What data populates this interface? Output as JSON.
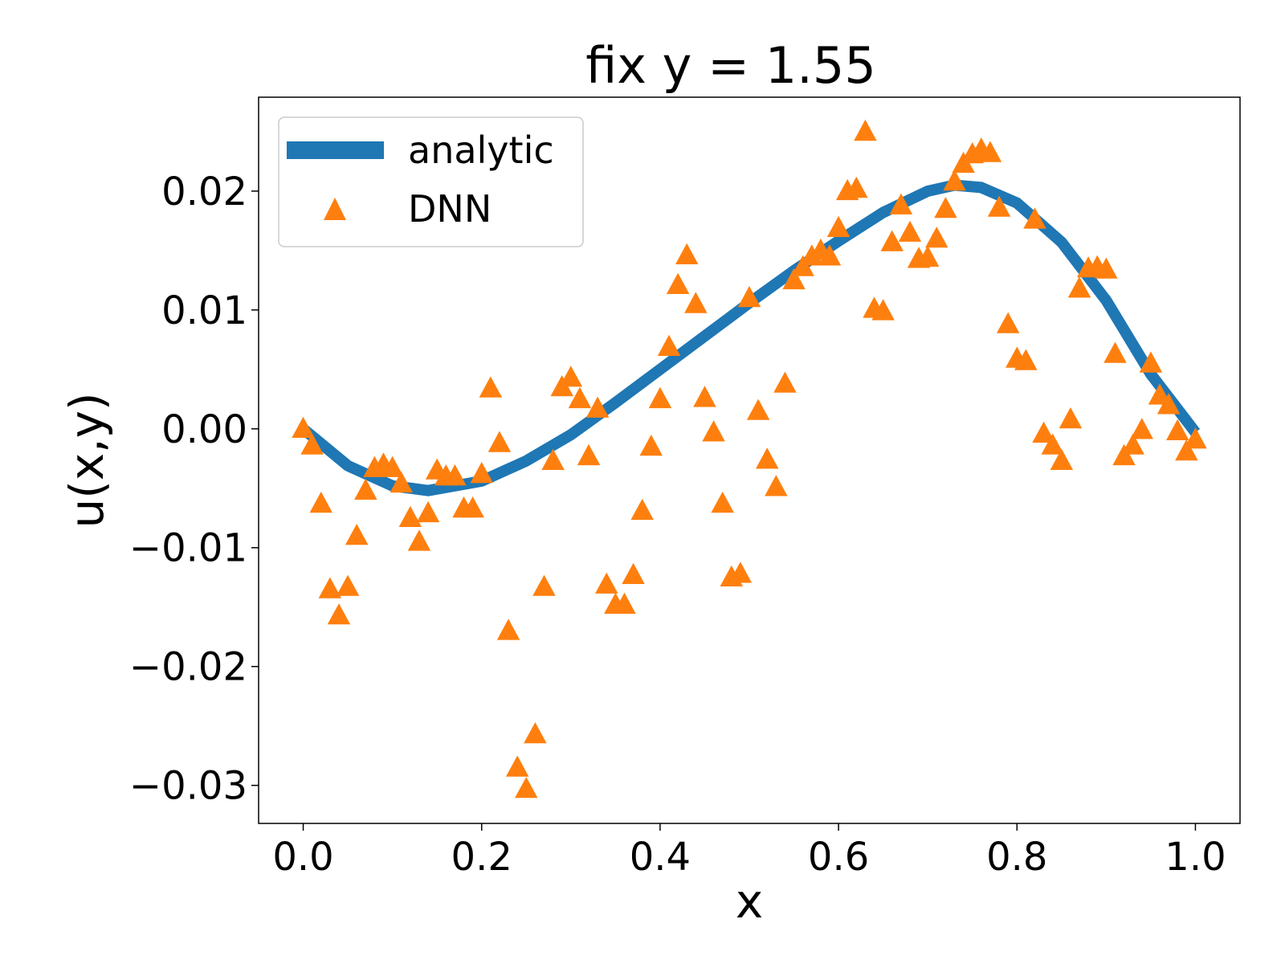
{
  "chart_data": {
    "type": "line",
    "title": "fix y = 1.55",
    "xlabel": "x",
    "ylabel": "u(x,y)",
    "xlim": [
      -0.05,
      1.05
    ],
    "ylim": [
      -0.0332,
      0.0279
    ],
    "xticks": [
      0.0,
      0.2,
      0.4,
      0.6,
      0.8,
      1.0
    ],
    "xtick_labels": [
      "0.0",
      "0.2",
      "0.4",
      "0.6",
      "0.8",
      "1.0"
    ],
    "yticks": [
      -0.03,
      -0.02,
      -0.01,
      0.0,
      0.01,
      0.02
    ],
    "ytick_labels": [
      "−0.03",
      "−0.02",
      "−0.01",
      "0.00",
      "0.01",
      "0.02"
    ],
    "grid": false,
    "legend": {
      "position": "upper-left",
      "entries": [
        "analytic",
        "DNN"
      ]
    },
    "colors": {
      "analytic": "#1f77b4",
      "dnn": "#ff7f0e"
    },
    "series": [
      {
        "name": "analytic",
        "kind": "line",
        "x": [
          0.0,
          0.05,
          0.1,
          0.14,
          0.2,
          0.25,
          0.3,
          0.35,
          0.4,
          0.45,
          0.5,
          0.55,
          0.6,
          0.65,
          0.7,
          0.73,
          0.76,
          0.8,
          0.85,
          0.9,
          0.95,
          1.0
        ],
        "y": [
          0.0,
          -0.0031,
          -0.0048,
          -0.0052,
          -0.0044,
          -0.0027,
          -0.0005,
          0.0022,
          0.005,
          0.0078,
          0.0106,
          0.0133,
          0.0158,
          0.0182,
          0.02,
          0.0205,
          0.0203,
          0.019,
          0.0157,
          0.0108,
          0.0046,
          -0.0003
        ]
      },
      {
        "name": "DNN",
        "kind": "scatter",
        "marker": "triangle",
        "points": [
          [
            0.0,
            0.0
          ],
          [
            0.01,
            -0.0014
          ],
          [
            0.02,
            -0.0063
          ],
          [
            0.03,
            -0.0135
          ],
          [
            0.04,
            -0.0157
          ],
          [
            0.05,
            -0.0133
          ],
          [
            0.06,
            -0.009
          ],
          [
            0.07,
            -0.0052
          ],
          [
            0.08,
            -0.0033
          ],
          [
            0.09,
            -0.003
          ],
          [
            0.1,
            -0.0033
          ],
          [
            0.11,
            -0.0046
          ],
          [
            0.12,
            -0.0075
          ],
          [
            0.13,
            -0.0095
          ],
          [
            0.14,
            -0.0071
          ],
          [
            0.15,
            -0.0035
          ],
          [
            0.16,
            -0.004
          ],
          [
            0.17,
            -0.004
          ],
          [
            0.18,
            -0.0067
          ],
          [
            0.19,
            -0.0067
          ],
          [
            0.2,
            -0.0038
          ],
          [
            0.21,
            0.0034
          ],
          [
            0.22,
            -0.0012
          ],
          [
            0.23,
            -0.017
          ],
          [
            0.24,
            -0.0285
          ],
          [
            0.25,
            -0.0303
          ],
          [
            0.26,
            -0.0257
          ],
          [
            0.27,
            -0.0133
          ],
          [
            0.28,
            -0.0027
          ],
          [
            0.29,
            0.0035
          ],
          [
            0.3,
            0.0043
          ],
          [
            0.31,
            0.0025
          ],
          [
            0.32,
            -0.0023
          ],
          [
            0.33,
            0.0017
          ],
          [
            0.34,
            -0.0131
          ],
          [
            0.35,
            -0.0148
          ],
          [
            0.36,
            -0.0148
          ],
          [
            0.37,
            -0.0123
          ],
          [
            0.38,
            -0.0069
          ],
          [
            0.39,
            -0.0015
          ],
          [
            0.4,
            0.0025
          ],
          [
            0.41,
            0.0069
          ],
          [
            0.42,
            0.0121
          ],
          [
            0.43,
            0.0146
          ],
          [
            0.44,
            0.0105
          ],
          [
            0.45,
            0.0026
          ],
          [
            0.46,
            -0.0003
          ],
          [
            0.47,
            -0.0063
          ],
          [
            0.48,
            -0.0125
          ],
          [
            0.49,
            -0.0122
          ],
          [
            0.5,
            0.011
          ],
          [
            0.51,
            0.0015
          ],
          [
            0.52,
            -0.0026
          ],
          [
            0.53,
            -0.0049
          ],
          [
            0.54,
            0.0038
          ],
          [
            0.55,
            0.0125
          ],
          [
            0.56,
            0.0136
          ],
          [
            0.57,
            0.0145
          ],
          [
            0.58,
            0.015
          ],
          [
            0.59,
            0.0145
          ],
          [
            0.6,
            0.0169
          ],
          [
            0.61,
            0.02
          ],
          [
            0.62,
            0.0202
          ],
          [
            0.63,
            0.025
          ],
          [
            0.64,
            0.0101
          ],
          [
            0.65,
            0.0099
          ],
          [
            0.66,
            0.0157
          ],
          [
            0.67,
            0.0188
          ],
          [
            0.68,
            0.0165
          ],
          [
            0.69,
            0.0143
          ],
          [
            0.7,
            0.0144
          ],
          [
            0.71,
            0.016
          ],
          [
            0.72,
            0.0185
          ],
          [
            0.73,
            0.0208
          ],
          [
            0.74,
            0.0223
          ],
          [
            0.75,
            0.0231
          ],
          [
            0.76,
            0.0235
          ],
          [
            0.77,
            0.0232
          ],
          [
            0.78,
            0.0186
          ],
          [
            0.79,
            0.0088
          ],
          [
            0.8,
            0.0059
          ],
          [
            0.81,
            0.0057
          ],
          [
            0.82,
            0.0176
          ],
          [
            0.83,
            -0.0004
          ],
          [
            0.84,
            -0.0014
          ],
          [
            0.85,
            -0.0027
          ],
          [
            0.86,
            0.0008
          ],
          [
            0.87,
            0.0118
          ],
          [
            0.88,
            0.0135
          ],
          [
            0.89,
            0.0136
          ],
          [
            0.9,
            0.0134
          ],
          [
            0.91,
            0.0063
          ],
          [
            0.92,
            -0.0023
          ],
          [
            0.93,
            -0.0014
          ],
          [
            0.94,
            -0.0001
          ],
          [
            0.95,
            0.0055
          ],
          [
            0.96,
            0.0028
          ],
          [
            0.97,
            0.002
          ],
          [
            0.98,
            -0.0002
          ],
          [
            0.99,
            -0.0019
          ],
          [
            1.0,
            -0.0009
          ]
        ]
      }
    ]
  }
}
